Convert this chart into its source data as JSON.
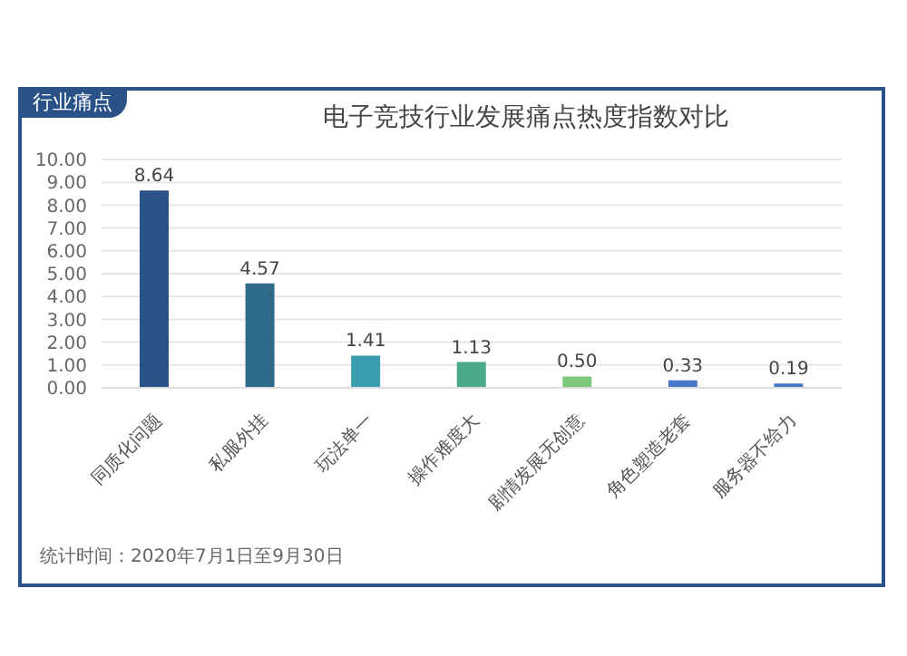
{
  "chart_data": {
    "type": "bar",
    "title": "电子竞技行业发展痛点热度指数对比",
    "categories": [
      "同质化问题",
      "私服外挂",
      "玩法单一",
      "操作难度大",
      "剧情发展无创意",
      "角色塑造老套",
      "服务器不给力"
    ],
    "values": [
      8.64,
      4.57,
      1.41,
      1.13,
      0.5,
      0.33,
      0.19
    ],
    "value_labels": [
      "8.64",
      "4.57",
      "1.41",
      "1.13",
      "0.50",
      "0.33",
      "0.19"
    ],
    "colors": [
      "#2b5288",
      "#2e6a8a",
      "#3a9eae",
      "#4aaa8a",
      "#7ec87e",
      "#4a78c8",
      "#4a78c8"
    ],
    "ylim": [
      0,
      10
    ],
    "yticks": [
      {
        "value": 0,
        "label": "0.00"
      },
      {
        "value": 1,
        "label": "1.00"
      },
      {
        "value": 2,
        "label": "2.00"
      },
      {
        "value": 3,
        "label": "3.00"
      },
      {
        "value": 4,
        "label": "4.00"
      },
      {
        "value": 5,
        "label": "5.00"
      },
      {
        "value": 6,
        "label": "6.00"
      },
      {
        "value": 7,
        "label": "7.00"
      },
      {
        "value": 8,
        "label": "8.00"
      },
      {
        "value": 9,
        "label": "9.00"
      },
      {
        "value": 10,
        "label": "10.00"
      }
    ],
    "grid": "y",
    "annotations": [
      "行业痛点",
      "统计时间：2020年7月1日至9月30日"
    ]
  }
}
